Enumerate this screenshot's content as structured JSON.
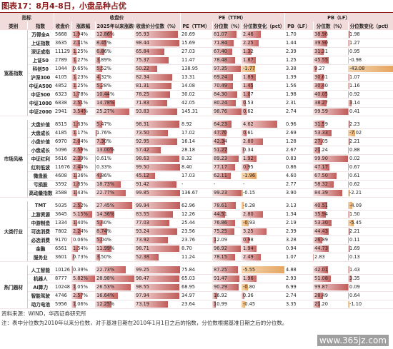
{
  "title": "图表17：8月4-8日，小盘品种占优",
  "header": {
    "groups": [
      "指标",
      "收盘价",
      "PE（TTM）",
      "PB（LF）"
    ],
    "columns": [
      "类别",
      "指数",
      "收盘价",
      "涨跌幅",
      "2025年以来涨跌幅",
      "收盘价分位数（%）",
      "PE（TTM）",
      "分位数（%）",
      "分位数变化（pct）",
      "PB（LF）",
      "分位数（%）",
      "分位数变化（pct）"
    ]
  },
  "sections": [
    {
      "category": "宽基指数",
      "rows": [
        [
          "万得全A",
          "5668",
          "1.94%",
          "12.86%",
          "95.93",
          "20.69",
          "81.07",
          "2.46",
          "1.70",
          "38.98",
          "1.98"
        ],
        [
          "上证指数",
          "3635",
          "2.11%",
          "8.45%",
          "98.44",
          "15.69",
          "71.84",
          "2.25",
          "1.44",
          "39.90",
          "1.27"
        ],
        [
          "深证成指",
          "11129",
          "1.25%",
          "6.86%",
          "65.84",
          "27.03",
          "67.40",
          "1.32",
          "2.39",
          "31.31",
          "0.95"
        ],
        [
          "上证50",
          "2789",
          "1.27%",
          "3.89%",
          "75.37",
          "11.47",
          "78.48",
          "1.87",
          "1.25",
          "45.55",
          "-0.98"
        ],
        [
          "科创50",
          "1044",
          "0.65%",
          "5.52%",
          "50.22",
          "138.95",
          "97.35",
          "-1.77",
          "3.38",
          "9.27",
          "-43.08"
        ],
        [
          "沪深300",
          "4105",
          "1.23%",
          "4.32%",
          "82.34",
          "13.31",
          "69.24",
          "1.89",
          "1.39",
          "30.61",
          "1.07"
        ],
        [
          "中证A500",
          "4852",
          "1.25%",
          "5.28%",
          "81.31",
          "14.08",
          "70.49",
          "1.45",
          "1.56",
          "30.40",
          "1.16"
        ],
        [
          "中证500",
          "6323",
          "1.78%",
          "10.44%",
          "78.25",
          "30.02",
          "84.30",
          "1.07",
          "1.98",
          "40.05",
          "0.92"
        ],
        [
          "中证1000",
          "6838",
          "2.51%",
          "14.78%",
          "71.83",
          "42.05",
          "80.24",
          "0.53",
          "2.31",
          "38.27",
          "3.14"
        ],
        [
          "中证2000",
          "2941",
          "3.54%",
          "25.27%",
          "93.83",
          "145.31",
          "98.76",
          "0.62",
          "2.74",
          "99.59",
          "0.41"
        ]
      ]
    },
    {
      "category": "市场风格",
      "rows": [
        [
          "大盘价值",
          "8515",
          "1.63%",
          "5.47%",
          "98.31",
          "8.92",
          "64.23",
          "4.62",
          "0.96",
          "31.59",
          "2.23"
        ],
        [
          "大盘成长",
          "4185",
          "1.17%",
          "1.76%",
          "73.50",
          "17.02",
          "47.70",
          "0.61",
          "2.69",
          "53.33",
          "-7.02"
        ],
        [
          "小盘价值",
          "6970",
          "2.04%",
          "7.30%",
          "92.95",
          "16.14",
          "42.34",
          "2.80",
          "1.28",
          "27.05",
          "2.21"
        ],
        [
          "小盘成长",
          "5096",
          "2.59%",
          "13.00%",
          "57.42",
          "28.18",
          "51.27",
          "0.34",
          "2.67",
          "21.24",
          "0.88"
        ],
        [
          "中证红利",
          "5616",
          "2.39%",
          "0.61%",
          "98.63",
          "8.32",
          "89.23",
          "1.92",
          "0.83",
          "99.90",
          "0.02"
        ],
        [
          "红利低波",
          "11676",
          "2.44%",
          "0.33%",
          "99.50",
          "8.40",
          "77.17",
          "0.95",
          "0.86",
          "47.17",
          "0.67"
        ],
        [
          "微盘股",
          "4608",
          "1.36%",
          "4.86%",
          "45.12",
          "17.03",
          "62.11",
          "-1.96",
          "4.60",
          "67.50",
          "0.61"
        ],
        [
          "亏损股",
          "3592",
          "1.85%",
          "18.73%",
          "91.42",
          "-",
          "-",
          "-",
          "2.77",
          "58.32",
          "0.62"
        ],
        [
          "高动量指数",
          "3588",
          "1.43%",
          "22.77%",
          "99.85",
          "136.67",
          "99.23",
          "-0.15",
          "3.90",
          "84.39",
          "-2.21"
        ]
      ]
    },
    {
      "category": "大类行业",
      "rows": [
        [
          "TMT",
          "5035",
          "2.52%",
          "27.45%",
          "99.94",
          "62.96",
          "78.61",
          "-0.28",
          "3.13",
          "40.51",
          "-4.09"
        ],
        [
          "上游资源",
          "3645",
          "5.15%",
          "14.36%",
          "83.55",
          "12.26",
          "44.51",
          "2.80",
          "1.34",
          "35.94",
          "1.50"
        ],
        [
          "中游制造",
          "1334",
          "1.40%",
          "5.40%",
          "77.03",
          "25.44",
          "76.86",
          "-0.93",
          "2.19",
          "53.30",
          "-5.45"
        ],
        [
          "可选消费",
          "7802",
          "2.24%",
          "8.74%",
          "93.24",
          "23.56",
          "75.25",
          "3.25",
          "2.39",
          "44.43",
          "2.21"
        ],
        [
          "必选消费",
          "9170",
          "0.06%",
          "5.04%",
          "73.92",
          "23.76",
          "12.09",
          "0.98",
          "3.28",
          "26.89",
          "0.11"
        ],
        [
          "金融",
          "6561",
          "1.54%",
          "11.99%",
          "98.71",
          "8.70",
          "96.92",
          "1.94",
          "0.94",
          "44.73",
          "1.69"
        ],
        [
          "服务业",
          "3601",
          "0.73%",
          "3.50%",
          "52.38",
          "11.24",
          "78.15",
          "2.49",
          "1.07",
          "2.83",
          "0.13"
        ]
      ]
    },
    {
      "category": "热门题材",
      "rows": [
        [
          "人工智能",
          "10126",
          "0.39%",
          "22.73%",
          "99.25",
          "75.84",
          "87.25",
          "-5.55",
          "4.88",
          "42.01",
          "1.43"
        ],
        [
          "机器人",
          "8777",
          "5.82%",
          "28.98%",
          "98.47",
          "65.03",
          "91.47",
          "1.96",
          "2.93",
          "51.08",
          "3.35"
        ],
        [
          "AI算力",
          "10248",
          "1.05%",
          "26.53%",
          "98.55",
          "68.95",
          "90.29",
          "-0.80",
          "6.99",
          "99.87",
          "0.09"
        ],
        [
          "智能驾驶",
          "4746",
          "2.57%",
          "16.64%",
          "97.94",
          "34.97",
          "16.92",
          "0.36",
          "2.74",
          "28.49",
          "0.64"
        ],
        [
          "动力电池",
          "5956",
          "1.06%",
          "12.25%",
          "73.19",
          "23.64",
          "10.99",
          "-0.45",
          "3.35",
          "21.20",
          "-1.10"
        ]
      ]
    }
  ],
  "footer": {
    "source": "资料来源：WIND，华西证券研究所",
    "note": "注：表中分位数为2010年以来分位数，对于基准日期在2010年1月1日之后的指数，分位数根据基准日期之后的分位数。"
  },
  "watermark": "www.365jz.com"
}
